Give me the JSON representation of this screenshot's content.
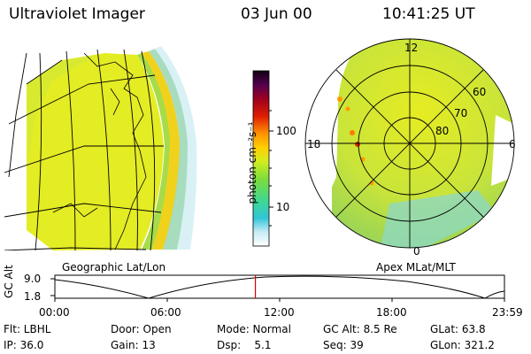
{
  "header": {
    "title": "Ultraviolet Imager",
    "date": "03 Jun 00",
    "time": "10:41:25 UT"
  },
  "colorbar": {
    "label": "photon cm⁻²s⁻¹",
    "ticks": [
      "100",
      "10"
    ]
  },
  "geo_map": {
    "caption": "Geographic Lat/Lon"
  },
  "polar_plot": {
    "caption": "Apex MLat/MLT",
    "mlt_labels": {
      "top": "12",
      "left": "18",
      "right": "6",
      "bottom": "0"
    },
    "lat_labels": [
      "60",
      "70",
      "80"
    ]
  },
  "altitude_plot": {
    "y_label": "GC Alt",
    "y_ticks": [
      "9.0",
      "1.8"
    ],
    "x_ticks": [
      "00:00",
      "06:00",
      "12:00",
      "18:00",
      "23:59"
    ],
    "current_time_fraction": 0.446
  },
  "footer": {
    "row1": [
      "Flt: LBHL",
      "Door: Open",
      "Mode: Normal",
      "GC Alt: 8.5 Re",
      "GLat: 63.8"
    ],
    "row2": [
      "IP: 36.0",
      "Gain: 13",
      "Dsp:    5.1",
      "Seq: 39",
      "GLon: 321.2"
    ]
  },
  "colors": {
    "accent_line": "#d40000",
    "auroral_yellow": "#e8ee20",
    "auroral_green": "#9ad84a"
  }
}
